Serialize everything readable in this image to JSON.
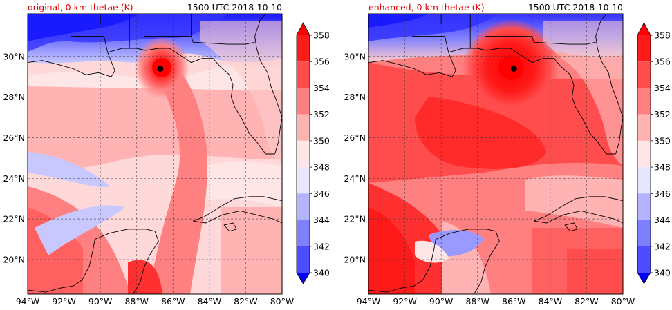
{
  "panels": [
    {
      "id": "original",
      "title_left": "original, 0 km thetae (K)",
      "title_right": "1500 UTC 2018-10-10",
      "storm_center": {
        "lon": -86.7,
        "lat": 29.4
      }
    },
    {
      "id": "enhanced",
      "title_left": "enhanced, 0 km thetae (K)",
      "title_right": "1500 UTC 2018-10-10",
      "storm_center": {
        "lon": -86.0,
        "lat": 29.4
      }
    }
  ],
  "map": {
    "lon_range": [
      -94,
      -80
    ],
    "lat_range": [
      18.3,
      32.1
    ],
    "lon_ticks": [
      "94°W",
      "92°W",
      "90°W",
      "88°W",
      "86°W",
      "84°W",
      "82°W",
      "80°W"
    ],
    "lat_ticks": [
      "20°N",
      "22°N",
      "24°N",
      "26°N",
      "28°N",
      "30°N"
    ],
    "lat_tick_values": [
      20,
      22,
      24,
      26,
      28,
      30
    ],
    "lon_tick_values": [
      -94,
      -92,
      -90,
      -88,
      -86,
      -84,
      -82,
      -80
    ]
  },
  "colorbar": {
    "levels": [
      "340",
      "342",
      "344",
      "346",
      "348",
      "350",
      "352",
      "354",
      "356",
      "358"
    ],
    "colors": [
      "#1a1aff",
      "#4d4dff",
      "#8080ff",
      "#b3b3ff",
      "#e6e6ff",
      "#ffe6e6",
      "#ffb3b3",
      "#ff8080",
      "#ff4d4d",
      "#ff1a1a"
    ],
    "under_color": "#0000ff",
    "over_color": "#ff0000"
  }
}
